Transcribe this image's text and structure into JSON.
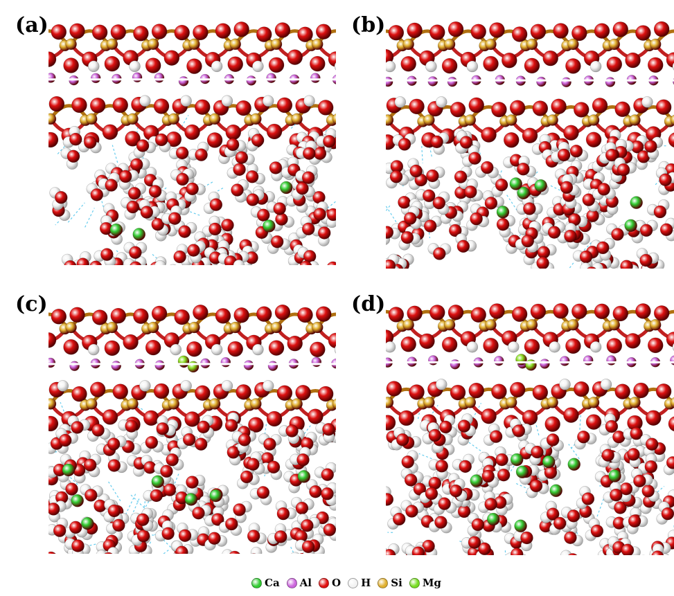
{
  "panels": [
    {
      "id": "a",
      "label": "(a)",
      "ions": 4,
      "mg": false,
      "seed": 11
    },
    {
      "id": "b",
      "label": "(b)",
      "ions": 6,
      "mg": false,
      "seed": 23
    },
    {
      "id": "c",
      "label": "(c)",
      "ions": 7,
      "mg": true,
      "seed": 37
    },
    {
      "id": "d",
      "label": "(d)",
      "ions": 9,
      "mg": true,
      "seed": 51
    }
  ],
  "legend": [
    {
      "symbol": "Ca",
      "color": "#33cc33"
    },
    {
      "symbol": "Al",
      "color": "#cc66dd"
    },
    {
      "symbol": "O",
      "color": "#e01010"
    },
    {
      "symbol": "H",
      "color": "#f2f2f2"
    },
    {
      "symbol": "Si",
      "color": "#e0b030"
    },
    {
      "symbol": "Mg",
      "color": "#77dd22"
    }
  ],
  "colors": {
    "oxygen": "#dd1111",
    "hydrogen": "#f4f4f4",
    "silicon": "#e0b030",
    "aluminum": "#cc66dd",
    "calcium": "#33cc33",
    "magnesium": "#88dd22",
    "hbond": "#66ccee",
    "midplane": "#ffffff"
  }
}
